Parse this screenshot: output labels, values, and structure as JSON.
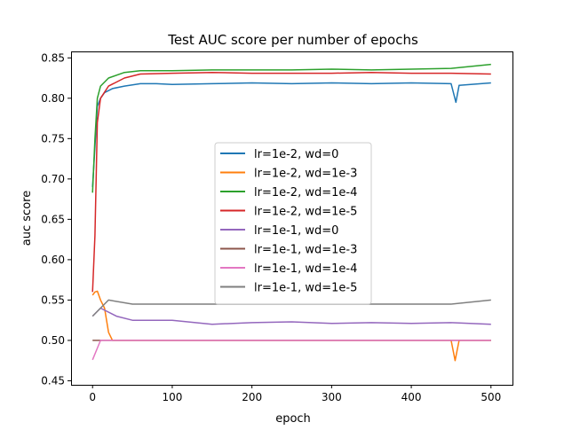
{
  "chart_data": {
    "type": "line",
    "title": "Test AUC score per number of epochs",
    "xlabel": "epoch",
    "ylabel": "auc score",
    "xlim": [
      -27,
      527
    ],
    "ylim": [
      0.445,
      0.858
    ],
    "xticks": [
      0,
      100,
      200,
      300,
      400,
      500
    ],
    "xtick_labels": [
      "0",
      "100",
      "200",
      "300",
      "400",
      "500"
    ],
    "yticks": [
      0.45,
      0.5,
      0.55,
      0.6,
      0.65,
      0.7,
      0.75,
      0.8,
      0.85
    ],
    "ytick_labels": [
      "0.45",
      "0.50",
      "0.55",
      "0.60",
      "0.65",
      "0.70",
      "0.75",
      "0.80",
      "0.85"
    ],
    "grid": false,
    "legend_position": "center",
    "series": [
      {
        "name": "lr=1e-2, wd=0",
        "color": "#1f77b4",
        "points": [
          [
            0,
            0.69
          ],
          [
            3,
            0.74
          ],
          [
            6,
            0.79
          ],
          [
            10,
            0.8
          ],
          [
            15,
            0.807
          ],
          [
            25,
            0.812
          ],
          [
            40,
            0.815
          ],
          [
            60,
            0.818
          ],
          [
            80,
            0.818
          ],
          [
            100,
            0.817
          ],
          [
            150,
            0.818
          ],
          [
            200,
            0.819
          ],
          [
            250,
            0.818
          ],
          [
            300,
            0.819
          ],
          [
            350,
            0.818
          ],
          [
            400,
            0.819
          ],
          [
            450,
            0.818
          ],
          [
            456,
            0.795
          ],
          [
            460,
            0.816
          ],
          [
            500,
            0.819
          ]
        ]
      },
      {
        "name": "lr=1e-2, wd=1e-3",
        "color": "#ff7f0e",
        "points": [
          [
            0,
            0.556
          ],
          [
            3,
            0.56
          ],
          [
            6,
            0.561
          ],
          [
            10,
            0.55
          ],
          [
            15,
            0.54
          ],
          [
            20,
            0.51
          ],
          [
            25,
            0.5
          ],
          [
            100,
            0.5
          ],
          [
            180,
            0.5
          ],
          [
            200,
            0.5
          ],
          [
            260,
            0.5
          ],
          [
            300,
            0.5
          ],
          [
            350,
            0.5
          ],
          [
            400,
            0.5
          ],
          [
            450,
            0.5
          ],
          [
            455,
            0.475
          ],
          [
            460,
            0.5
          ],
          [
            500,
            0.5
          ]
        ]
      },
      {
        "name": "lr=1e-2, wd=1e-4",
        "color": "#2ca02c",
        "points": [
          [
            0,
            0.683
          ],
          [
            3,
            0.75
          ],
          [
            6,
            0.8
          ],
          [
            10,
            0.815
          ],
          [
            20,
            0.825
          ],
          [
            40,
            0.832
          ],
          [
            60,
            0.834
          ],
          [
            100,
            0.834
          ],
          [
            150,
            0.835
          ],
          [
            200,
            0.835
          ],
          [
            250,
            0.835
          ],
          [
            300,
            0.836
          ],
          [
            350,
            0.835
          ],
          [
            400,
            0.836
          ],
          [
            450,
            0.837
          ],
          [
            500,
            0.842
          ]
        ]
      },
      {
        "name": "lr=1e-2, wd=1e-5",
        "color": "#d62728",
        "points": [
          [
            0,
            0.56
          ],
          [
            3,
            0.63
          ],
          [
            6,
            0.77
          ],
          [
            10,
            0.8
          ],
          [
            20,
            0.815
          ],
          [
            40,
            0.825
          ],
          [
            60,
            0.83
          ],
          [
            100,
            0.831
          ],
          [
            150,
            0.832
          ],
          [
            200,
            0.831
          ],
          [
            250,
            0.831
          ],
          [
            300,
            0.831
          ],
          [
            350,
            0.832
          ],
          [
            400,
            0.831
          ],
          [
            450,
            0.831
          ],
          [
            500,
            0.83
          ]
        ]
      },
      {
        "name": "lr=1e-1, wd=0",
        "color": "#9467bd",
        "points": [
          [
            0,
            0.53
          ],
          [
            10,
            0.54
          ],
          [
            30,
            0.53
          ],
          [
            50,
            0.525
          ],
          [
            100,
            0.525
          ],
          [
            150,
            0.52
          ],
          [
            200,
            0.522
          ],
          [
            250,
            0.523
          ],
          [
            300,
            0.521
          ],
          [
            350,
            0.522
          ],
          [
            400,
            0.521
          ],
          [
            450,
            0.522
          ],
          [
            500,
            0.52
          ]
        ]
      },
      {
        "name": "lr=1e-1, wd=1e-3",
        "color": "#8c564b",
        "points": [
          [
            0,
            0.5
          ],
          [
            50,
            0.5
          ],
          [
            100,
            0.5
          ],
          [
            150,
            0.5
          ],
          [
            200,
            0.5
          ],
          [
            250,
            0.5
          ],
          [
            300,
            0.5
          ],
          [
            350,
            0.5
          ],
          [
            400,
            0.5
          ],
          [
            450,
            0.5
          ],
          [
            500,
            0.5
          ]
        ]
      },
      {
        "name": "lr=1e-1, wd=1e-4",
        "color": "#e377c2",
        "points": [
          [
            0,
            0.476
          ],
          [
            10,
            0.5
          ],
          [
            50,
            0.5
          ],
          [
            100,
            0.5
          ],
          [
            150,
            0.5
          ],
          [
            200,
            0.5
          ],
          [
            250,
            0.5
          ],
          [
            300,
            0.5
          ],
          [
            350,
            0.5
          ],
          [
            400,
            0.5
          ],
          [
            450,
            0.5
          ],
          [
            500,
            0.5
          ]
        ]
      },
      {
        "name": "lr=1e-1, wd=1e-5",
        "color": "#7f7f7f",
        "points": [
          [
            0,
            0.53
          ],
          [
            20,
            0.55
          ],
          [
            50,
            0.545
          ],
          [
            100,
            0.545
          ],
          [
            150,
            0.545
          ],
          [
            200,
            0.545
          ],
          [
            250,
            0.545
          ],
          [
            300,
            0.545
          ],
          [
            350,
            0.545
          ],
          [
            400,
            0.545
          ],
          [
            450,
            0.545
          ],
          [
            500,
            0.55
          ]
        ]
      }
    ]
  }
}
